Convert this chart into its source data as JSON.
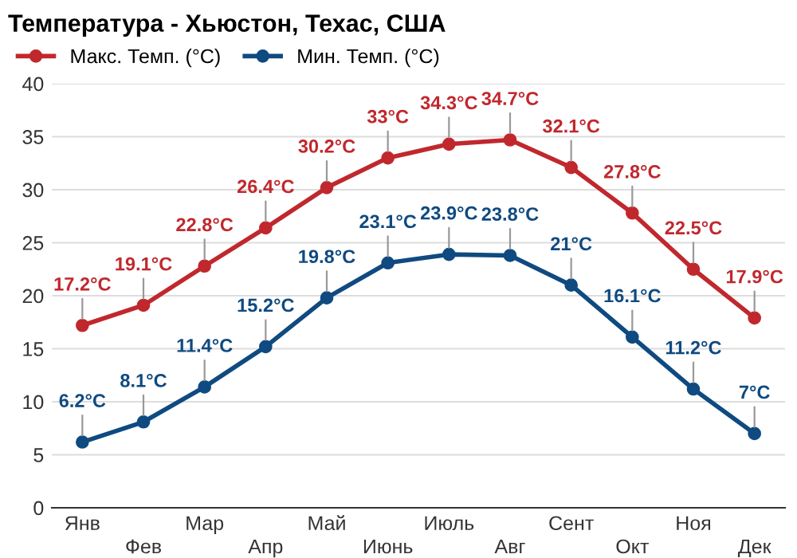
{
  "chart_data": {
    "type": "line",
    "title": "Температура - Хьюстон, Техас, США",
    "categories": [
      "Янв",
      "Фев",
      "Мар",
      "Апр",
      "Май",
      "Июнь",
      "Июль",
      "Авг",
      "Сент",
      "Окт",
      "Ноя",
      "Дек"
    ],
    "series": [
      {
        "name": "Макс. Темп. (°C)",
        "color": "#c0282d",
        "values": [
          17.2,
          19.1,
          22.8,
          26.4,
          30.2,
          33,
          34.3,
          34.7,
          32.1,
          27.8,
          22.5,
          17.9
        ],
        "value_labels": [
          "17.2°C",
          "19.1°C",
          "22.8°C",
          "26.4°C",
          "30.2°C",
          "33°C",
          "34.3°C",
          "34.7°C",
          "32.1°C",
          "27.8°C",
          "22.5°C",
          "17.9°C"
        ]
      },
      {
        "name": "Мин. Темп. (°C)",
        "color": "#0f4a80",
        "values": [
          6.2,
          8.1,
          11.4,
          15.2,
          19.8,
          23.1,
          23.9,
          23.8,
          21,
          16.1,
          11.2,
          7
        ],
        "value_labels": [
          "6.2°C",
          "8.1°C",
          "11.4°C",
          "15.2°C",
          "19.8°C",
          "23.1°C",
          "23.9°C",
          "23.8°C",
          "21°C",
          "16.1°C",
          "11.2°C",
          "7°C"
        ]
      }
    ],
    "ylim": [
      0,
      40
    ],
    "yticks": [
      0,
      5,
      10,
      15,
      20,
      25,
      30,
      35,
      40
    ],
    "grid": "y",
    "legend": "top left",
    "marker": "circle",
    "line_style": "solid"
  }
}
